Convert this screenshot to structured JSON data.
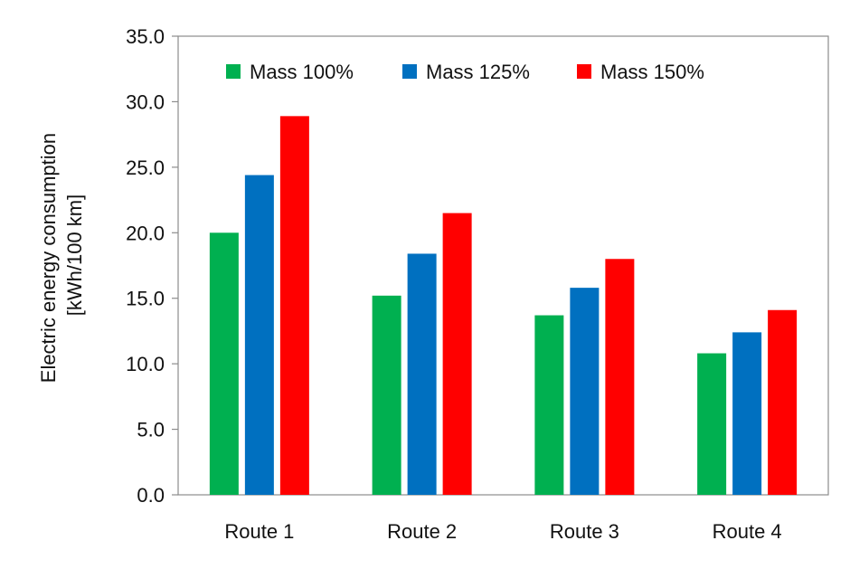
{
  "chart_data": {
    "type": "bar",
    "title": "",
    "xlabel": "",
    "ylabel_lines": [
      "Electric energy consumption",
      "[kWh/100 km]"
    ],
    "categories": [
      "Route 1",
      "Route 2",
      "Route 3",
      "Route 4"
    ],
    "series": [
      {
        "name": "Mass 100%",
        "color": "#00b050",
        "values": [
          20.0,
          15.2,
          13.7,
          10.8
        ]
      },
      {
        "name": "Mass 125%",
        "color": "#0070c0",
        "values": [
          24.4,
          18.4,
          15.8,
          12.4
        ]
      },
      {
        "name": "Mass 150%",
        "color": "#ff0000",
        "values": [
          28.9,
          21.5,
          18.0,
          14.1
        ]
      }
    ],
    "ylim": [
      0,
      35
    ],
    "yticks": [
      "0.0",
      "5.0",
      "10.0",
      "15.0",
      "20.0",
      "25.0",
      "30.0",
      "35.0"
    ],
    "ytick_values": [
      0,
      5,
      10,
      15,
      20,
      25,
      30,
      35
    ],
    "grid": false,
    "legend_position": "top"
  }
}
